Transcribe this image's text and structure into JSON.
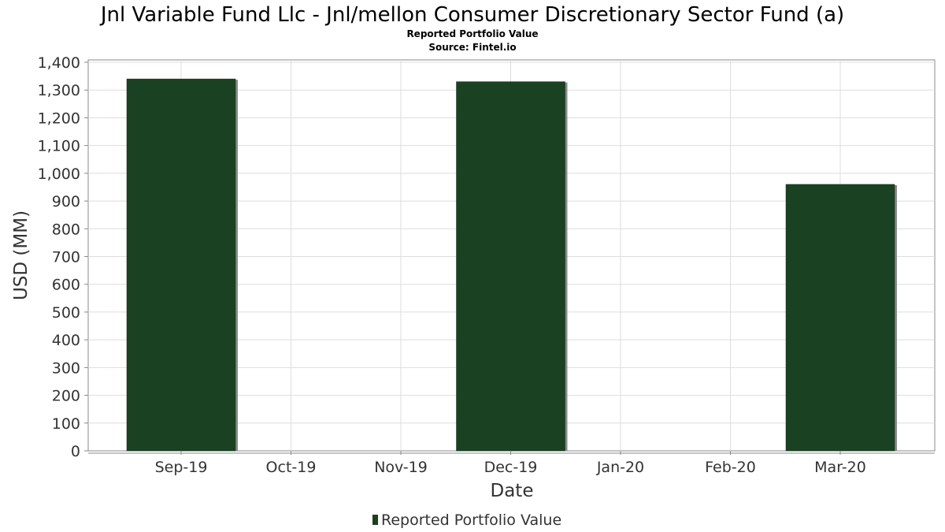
{
  "colors": {
    "bar": "#1a4122",
    "bar_shadow": "#8a8a8a",
    "grid": "#dddddd",
    "plot_border": "#888888"
  },
  "chart_data": {
    "type": "bar",
    "title": "Jnl Variable Fund Llc - Jnl/mellon Consumer Discretionary Sector Fund (a)",
    "subtitle": "Reported Portfolio Value",
    "source": "Source: Fintel.io",
    "xlabel": "Date",
    "ylabel": "USD (MM)",
    "ylim": [
      0,
      1400
    ],
    "yticks": [
      0,
      100,
      200,
      300,
      400,
      500,
      600,
      700,
      800,
      900,
      1000,
      1100,
      1200,
      1300,
      1400
    ],
    "ytick_labels": [
      "0",
      "100",
      "200",
      "300",
      "400",
      "500",
      "600",
      "700",
      "800",
      "900",
      "1,000",
      "1,100",
      "1,200",
      "1,300",
      "1,400"
    ],
    "xtick_labels": [
      "Sep-19",
      "Oct-19",
      "Nov-19",
      "Dec-19",
      "Jan-20",
      "Feb-20",
      "Mar-20"
    ],
    "grid": true,
    "legend_position": "bottom",
    "series": [
      {
        "name": "Reported Portfolio Value",
        "points": [
          {
            "date": "Sep-19",
            "value": 1340
          },
          {
            "date": "Dec-19",
            "value": 1330
          },
          {
            "date": "Mar-20",
            "value": 960
          }
        ]
      }
    ]
  }
}
